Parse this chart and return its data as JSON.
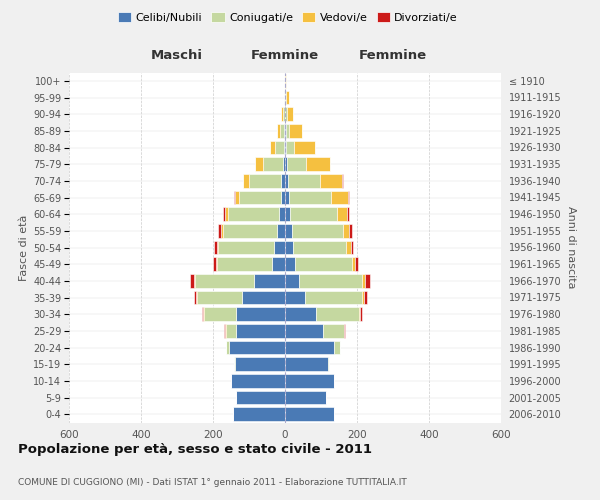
{
  "age_groups": [
    "0-4",
    "5-9",
    "10-14",
    "15-19",
    "20-24",
    "25-29",
    "30-34",
    "35-39",
    "40-44",
    "45-49",
    "50-54",
    "55-59",
    "60-64",
    "65-69",
    "70-74",
    "75-79",
    "80-84",
    "85-89",
    "90-94",
    "95-99",
    "100+"
  ],
  "birth_years": [
    "2006-2010",
    "2001-2005",
    "1996-2000",
    "1991-1995",
    "1986-1990",
    "1981-1985",
    "1976-1980",
    "1971-1975",
    "1966-1970",
    "1961-1965",
    "1956-1960",
    "1951-1955",
    "1946-1950",
    "1941-1945",
    "1936-1940",
    "1931-1935",
    "1926-1930",
    "1921-1925",
    "1916-1920",
    "1911-1915",
    "≤ 1910"
  ],
  "males": {
    "celibi": [
      145,
      135,
      150,
      140,
      155,
      135,
      135,
      120,
      85,
      35,
      30,
      22,
      18,
      12,
      10,
      6,
      4,
      3,
      1,
      0,
      0
    ],
    "coniugati": [
      0,
      0,
      0,
      2,
      10,
      30,
      90,
      125,
      165,
      155,
      155,
      150,
      140,
      115,
      90,
      55,
      25,
      12,
      5,
      2,
      0
    ],
    "vedovi": [
      0,
      0,
      0,
      0,
      0,
      2,
      2,
      3,
      3,
      3,
      4,
      5,
      8,
      12,
      18,
      22,
      14,
      8,
      4,
      2,
      1
    ],
    "divorziati": [
      0,
      0,
      0,
      0,
      0,
      2,
      3,
      5,
      12,
      8,
      8,
      10,
      6,
      2,
      0,
      0,
      0,
      0,
      0,
      0,
      0
    ]
  },
  "females": {
    "nubili": [
      135,
      115,
      135,
      120,
      135,
      105,
      85,
      55,
      40,
      28,
      22,
      20,
      15,
      12,
      8,
      5,
      3,
      2,
      1,
      0,
      0
    ],
    "coniugate": [
      0,
      0,
      0,
      3,
      18,
      58,
      120,
      160,
      175,
      158,
      148,
      140,
      130,
      115,
      90,
      52,
      22,
      10,
      4,
      2,
      0
    ],
    "vedove": [
      0,
      0,
      0,
      0,
      0,
      2,
      3,
      5,
      8,
      8,
      12,
      18,
      28,
      48,
      60,
      68,
      58,
      35,
      18,
      8,
      3
    ],
    "divorziate": [
      0,
      0,
      0,
      0,
      0,
      2,
      5,
      8,
      12,
      10,
      8,
      8,
      5,
      2,
      2,
      0,
      0,
      0,
      0,
      0,
      0
    ]
  },
  "colors": {
    "celibi": "#4a7ab5",
    "coniugati": "#c5d8a0",
    "vedovi": "#f5c040",
    "divorziati": "#cc1a18"
  },
  "legend_labels": [
    "Celibi/Nubili",
    "Coniugati/e",
    "Vedovi/e",
    "Divorziati/e"
  ],
  "title": "Popolazione per età, sesso e stato civile - 2011",
  "subtitle": "COMUNE DI CUGGIONO (MI) - Dati ISTAT 1° gennaio 2011 - Elaborazione TUTTITALIA.IT",
  "ylabel_left": "Fasce di età",
  "ylabel_right": "Anni di nascita",
  "label_maschi": "Maschi",
  "label_femmine": "Femmine",
  "xlim": 600,
  "bg_color": "#f0f0f0",
  "plot_bg": "#ffffff"
}
